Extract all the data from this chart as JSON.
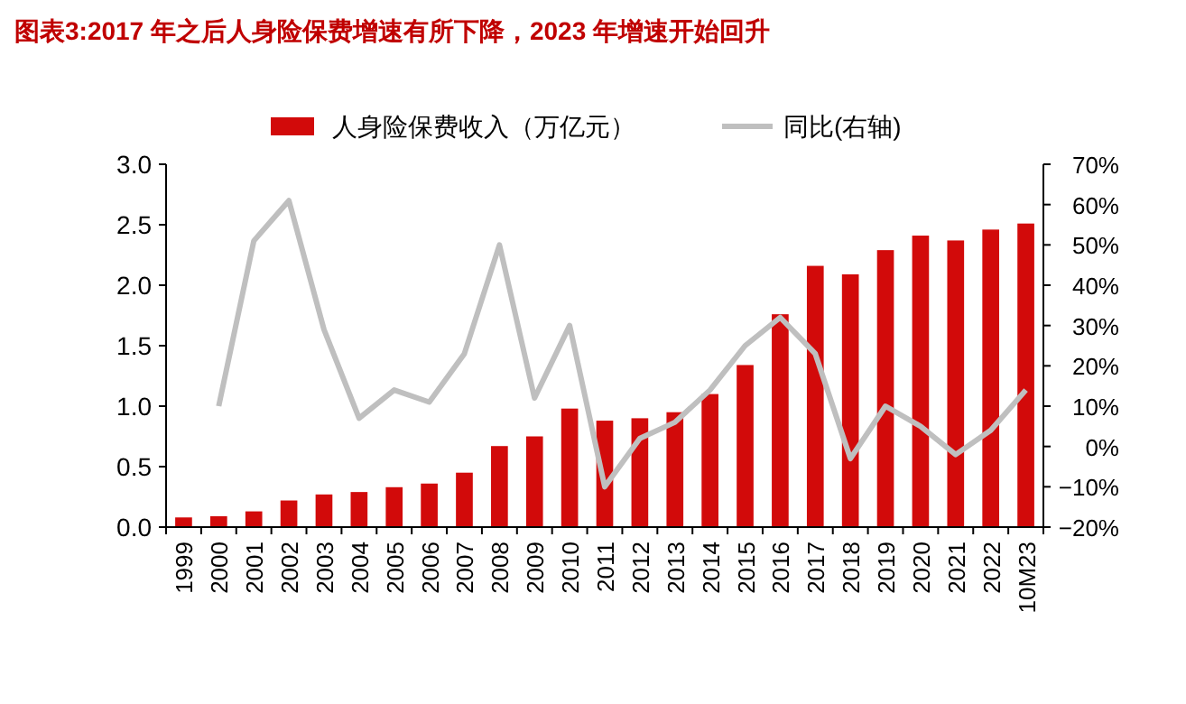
{
  "chart_data": {
    "type": "bar",
    "title": "图表3:2017 年之后人身险保费增速有所下降，2023 年增速开始回升",
    "categories": [
      "1999",
      "2000",
      "2001",
      "2002",
      "2003",
      "2004",
      "2005",
      "2006",
      "2007",
      "2008",
      "2009",
      "2010",
      "2011",
      "2012",
      "2013",
      "2014",
      "2015",
      "2016",
      "2017",
      "2018",
      "2019",
      "2020",
      "2021",
      "2022",
      "10M23"
    ],
    "series": [
      {
        "name": "人身险保费收入（万亿元）",
        "color": "#d20a0a",
        "values": [
          0.08,
          0.09,
          0.13,
          0.22,
          0.27,
          0.29,
          0.33,
          0.36,
          0.45,
          0.67,
          0.75,
          0.98,
          0.88,
          0.9,
          0.95,
          1.1,
          1.34,
          1.76,
          2.16,
          2.09,
          2.29,
          2.41,
          2.37,
          2.46,
          2.51
        ]
      },
      {
        "name": "同比(右轴)",
        "type": "line",
        "axis": "y2",
        "color": "#bfbfbf",
        "values": [
          null,
          10,
          51,
          61,
          29,
          7,
          14,
          11,
          23,
          50,
          12,
          30,
          -10,
          2,
          6,
          14,
          25,
          32,
          23,
          -3,
          10,
          5,
          -2,
          4,
          14
        ]
      }
    ],
    "ylim": [
      0,
      3
    ],
    "yticks": [
      {
        "value": 0,
        "label": "0.0"
      },
      {
        "value": 0.5,
        "label": "0.5"
      },
      {
        "value": 1,
        "label": "1.0"
      },
      {
        "value": 1.5,
        "label": "1.5"
      },
      {
        "value": 2,
        "label": "2.0"
      },
      {
        "value": 2.5,
        "label": "2.5"
      },
      {
        "value": 3,
        "label": "3.0"
      }
    ],
    "y2lim": [
      -20,
      70
    ],
    "y2ticks": [
      {
        "value": -20,
        "label": "−20%"
      },
      {
        "value": -10,
        "label": "−10%"
      },
      {
        "value": 0,
        "label": "0%"
      },
      {
        "value": 10,
        "label": "10%"
      },
      {
        "value": 20,
        "label": "20%"
      },
      {
        "value": 30,
        "label": "30%"
      },
      {
        "value": 40,
        "label": "40%"
      },
      {
        "value": 50,
        "label": "50%"
      },
      {
        "value": 60,
        "label": "60%"
      },
      {
        "value": 70,
        "label": "70%"
      }
    ],
    "grid": false,
    "legend": "top"
  }
}
